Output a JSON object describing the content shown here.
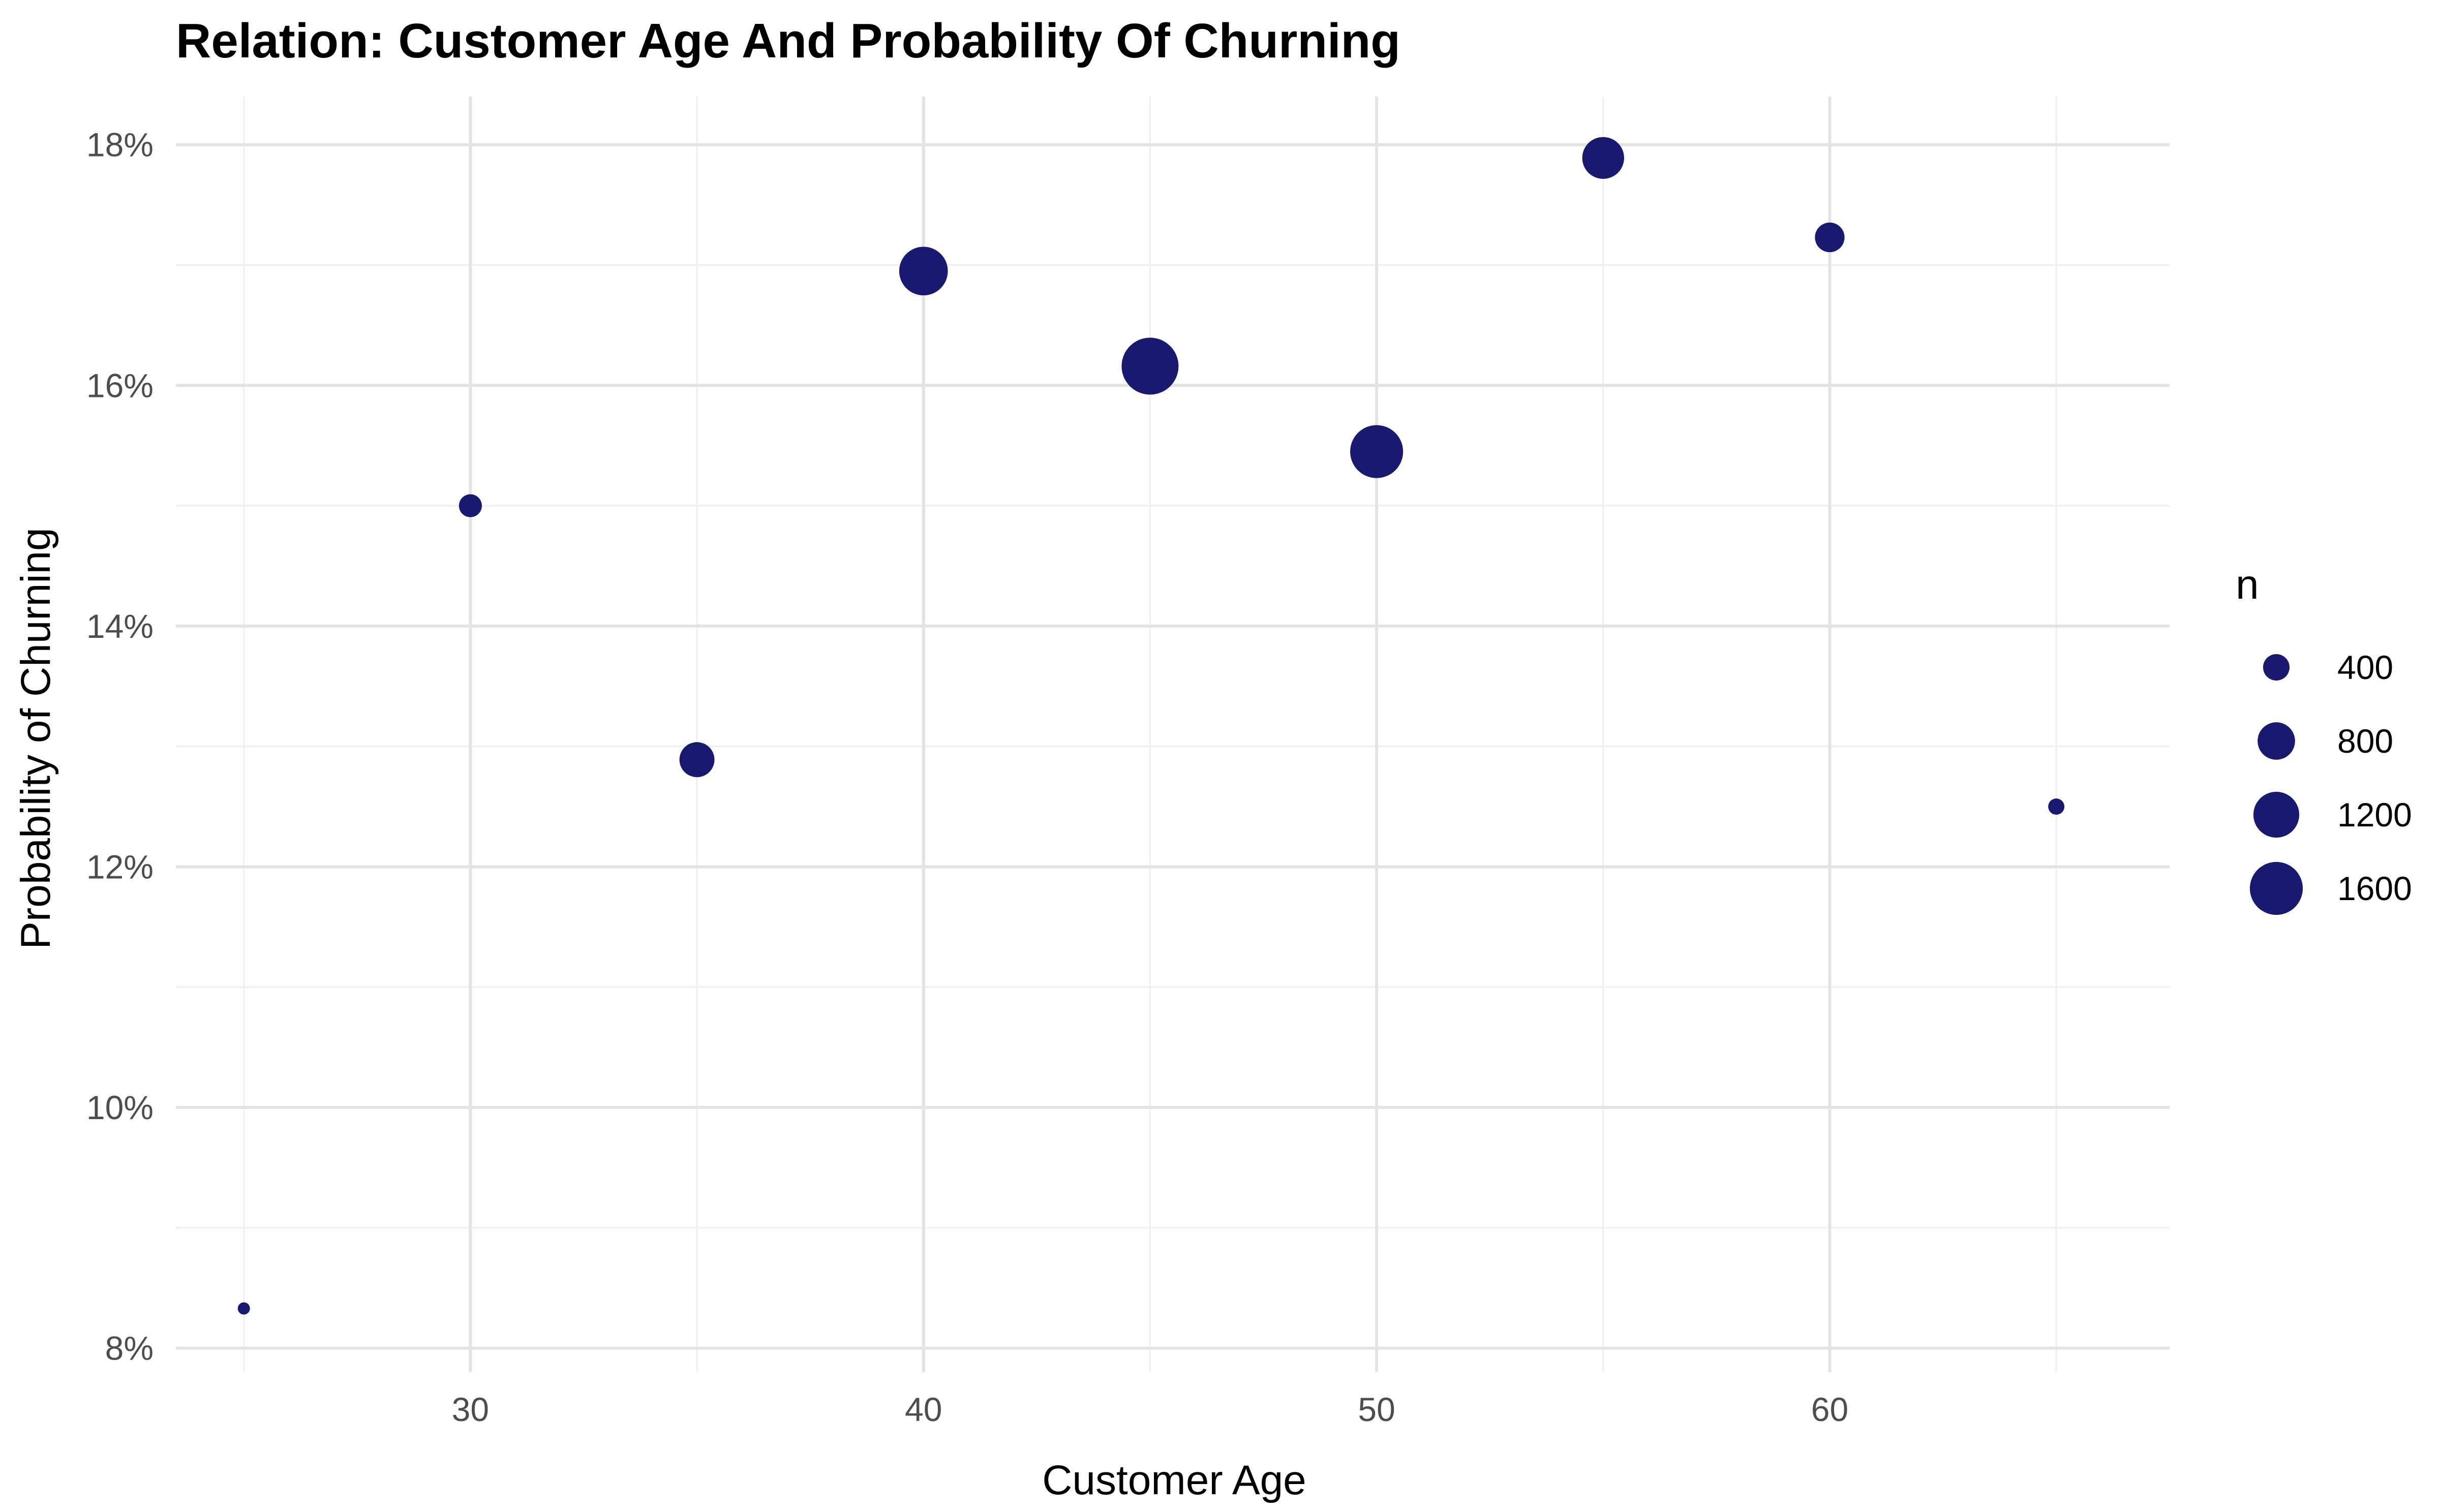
{
  "chart_data": {
    "type": "scatter",
    "title": "Relation: Customer Age And Probability Of Churning",
    "xlabel": "Customer Age",
    "ylabel": "Probability of Churning",
    "xlim": [
      23.5,
      67.5
    ],
    "ylim": [
      7.8,
      18.4
    ],
    "x_ticks": [
      30,
      40,
      50,
      60
    ],
    "x_tick_labels": [
      "30",
      "40",
      "50",
      "60"
    ],
    "x_minor_ticks": [
      25,
      35,
      45,
      55,
      65
    ],
    "y_ticks": [
      8,
      10,
      12,
      14,
      16,
      18
    ],
    "y_tick_labels": [
      "8%",
      "10%",
      "12%",
      "14%",
      "16%",
      "18%"
    ],
    "y_minor_ticks": [
      9,
      11,
      13,
      15,
      17
    ],
    "grid": true,
    "point_color": "#191970",
    "size_variable": "n",
    "points": [
      {
        "x": 25,
        "y": 8.33,
        "n": 25
      },
      {
        "x": 30,
        "y": 15.0,
        "n": 300
      },
      {
        "x": 35,
        "y": 12.89,
        "n": 700
      },
      {
        "x": 40,
        "y": 16.95,
        "n": 1350
      },
      {
        "x": 45,
        "y": 16.16,
        "n": 1850
      },
      {
        "x": 50,
        "y": 15.45,
        "n": 1600
      },
      {
        "x": 55,
        "y": 17.89,
        "n": 1000
      },
      {
        "x": 60,
        "y": 17.23,
        "n": 500
      },
      {
        "x": 65,
        "y": 12.5,
        "n": 150
      }
    ],
    "legend": {
      "title": "n",
      "position": "right",
      "entries": [
        {
          "label": "400",
          "value": 400
        },
        {
          "label": "800",
          "value": 800
        },
        {
          "label": "1200",
          "value": 1200
        },
        {
          "label": "1600",
          "value": 1600
        }
      ]
    }
  }
}
